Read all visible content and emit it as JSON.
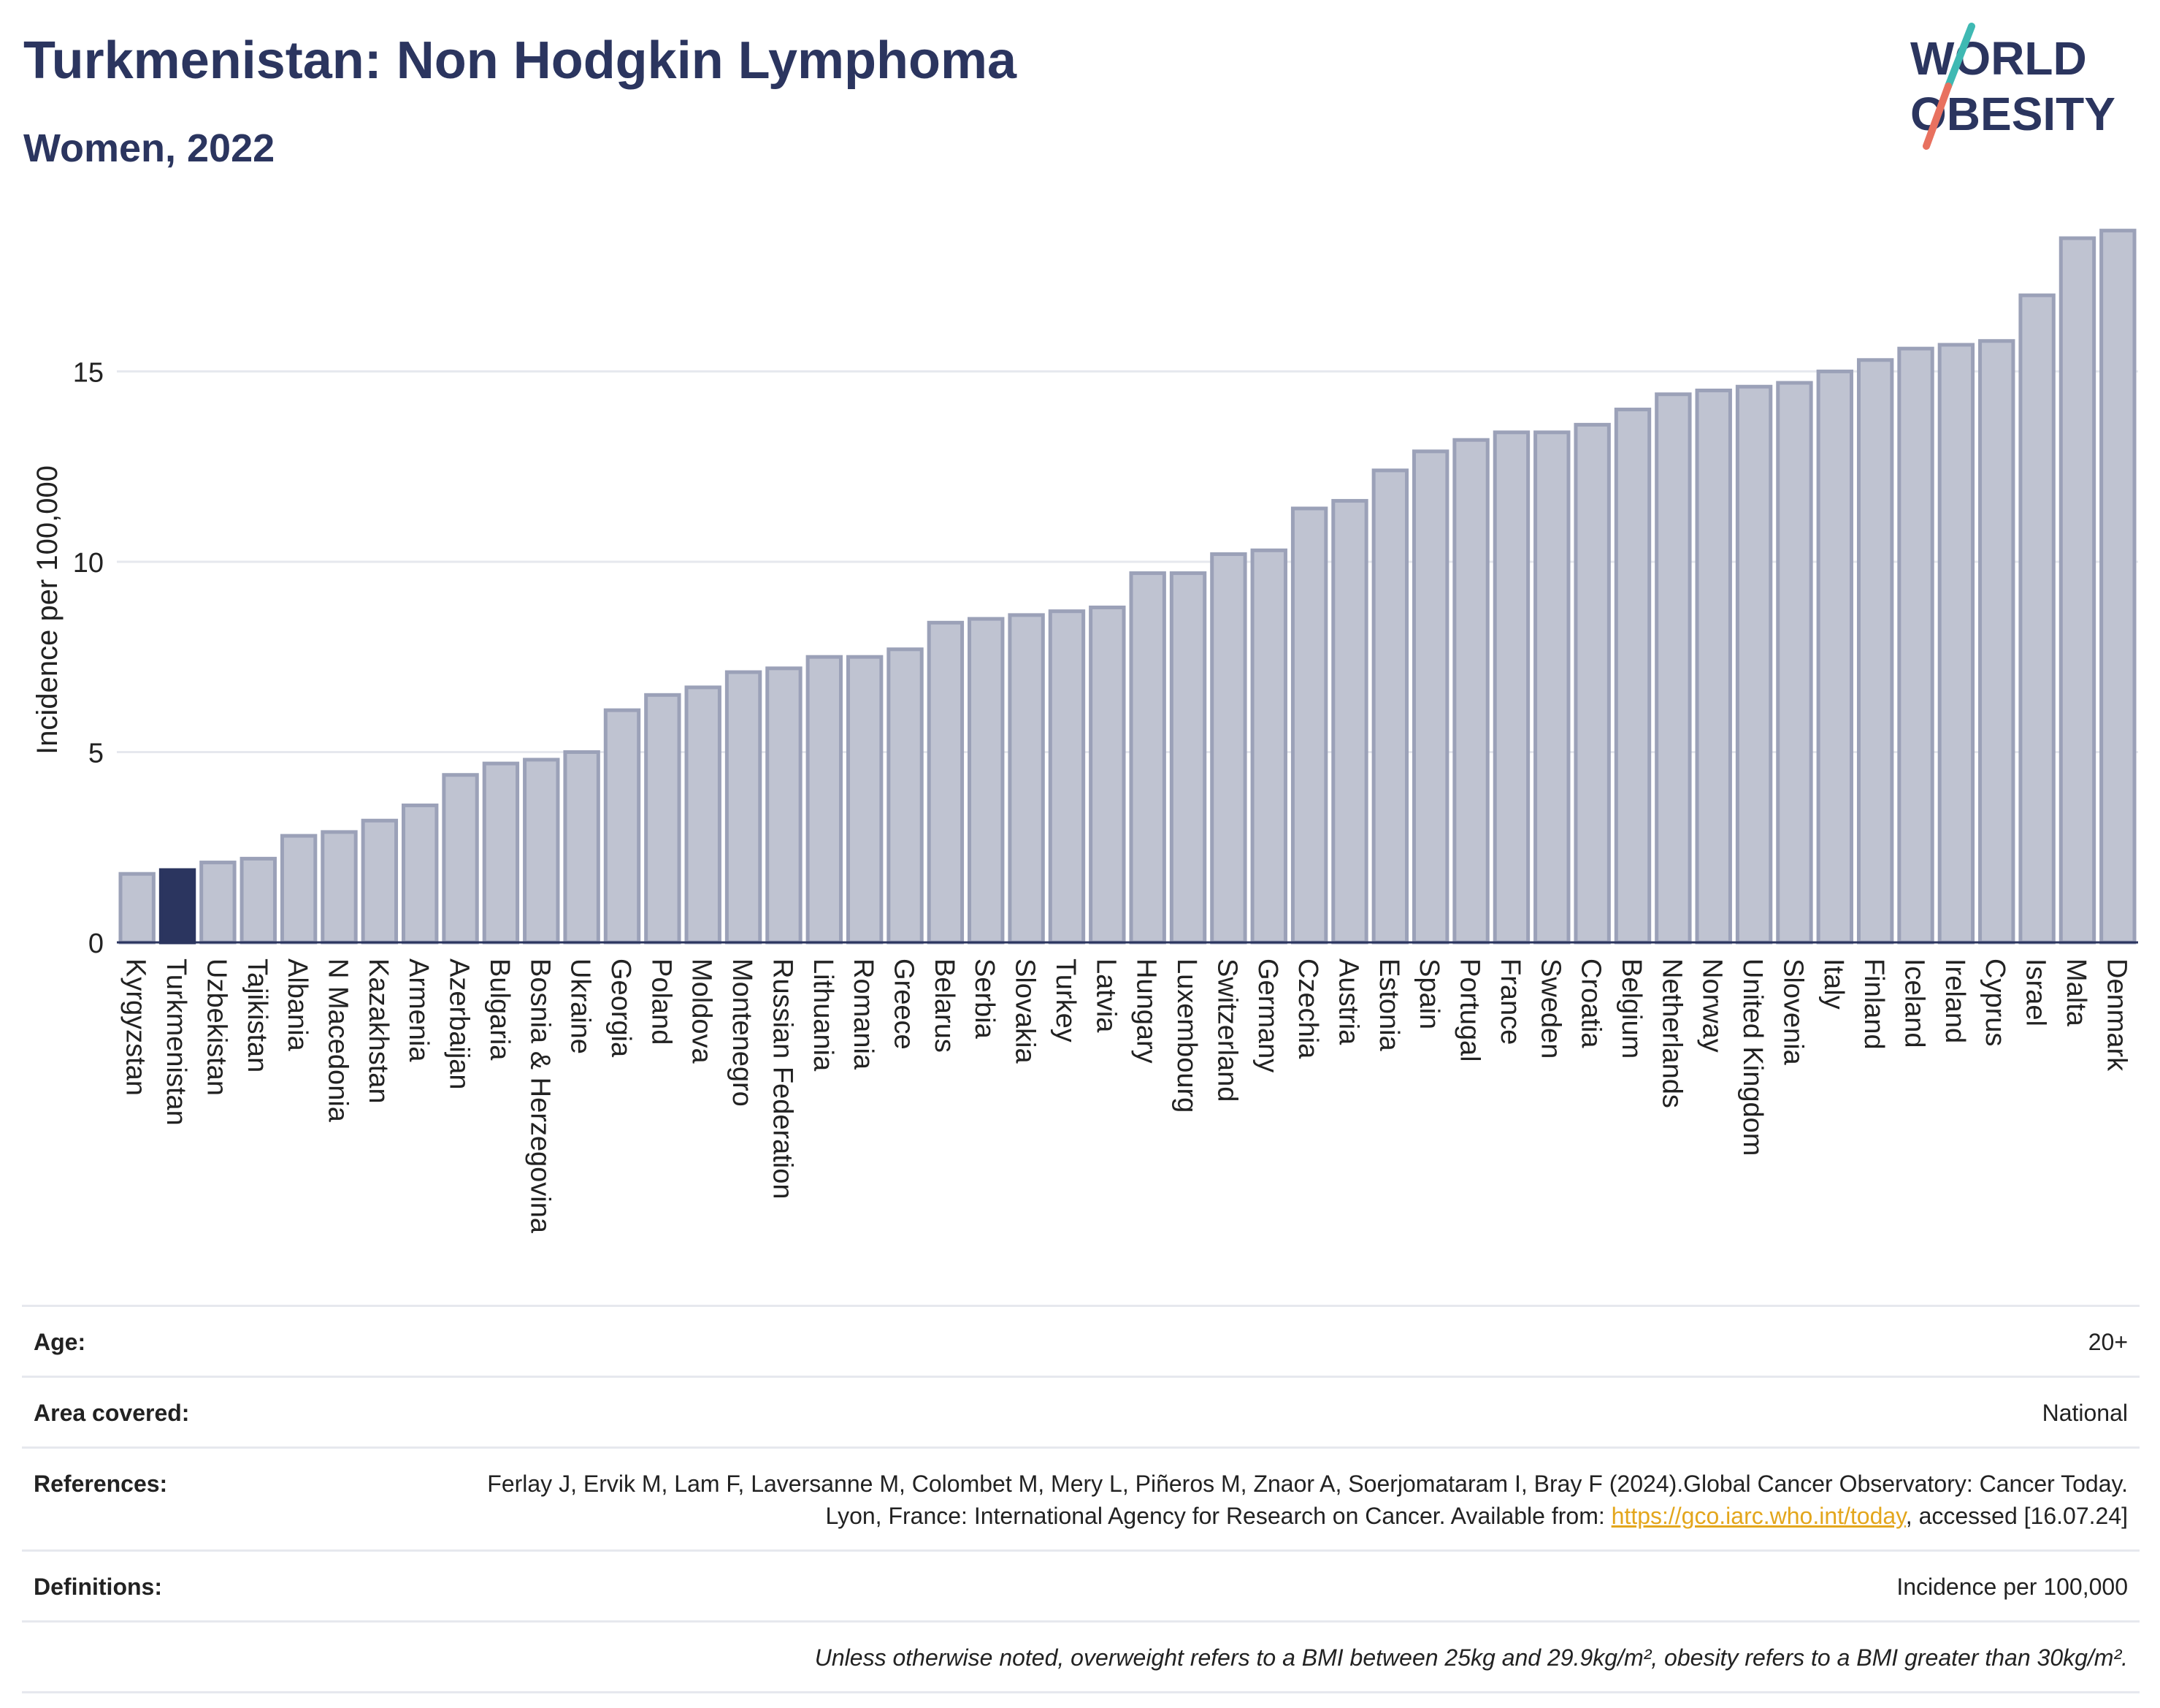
{
  "header": {
    "title": "Turkmenistan: Non Hodgkin Lymphoma",
    "subtitle": "Women, 2022"
  },
  "logo": {
    "line1": "WORLD",
    "line2": "OBESITY",
    "slash_colors": [
      "#3fb9b3",
      "#e8715f"
    ],
    "text_color": "#2b355f"
  },
  "colors": {
    "highlight_bar": "#2b355f",
    "other_bar": "#bfc3d1",
    "bar_outline": "#9ba1b8",
    "grid": "#e6e8ee",
    "axis": "#2b355f"
  },
  "chart_data": {
    "type": "bar",
    "ylabel": "Incidence per 100,000",
    "ylim": [
      0,
      19
    ],
    "yticks": [
      0,
      5,
      10,
      15
    ],
    "grid": true,
    "highlight": "Turkmenistan",
    "categories": [
      "Kyrgyzstan",
      "Turkmenistan",
      "Uzbekistan",
      "Tajikistan",
      "Albania",
      "N Macedonia",
      "Kazakhstan",
      "Armenia",
      "Azerbaijan",
      "Bulgaria",
      "Bosnia & Herzegovina",
      "Ukraine",
      "Georgia",
      "Poland",
      "Moldova",
      "Montenegro",
      "Russian Federation",
      "Lithuania",
      "Romania",
      "Greece",
      "Belarus",
      "Serbia",
      "Slovakia",
      "Turkey",
      "Latvia",
      "Hungary",
      "Luxembourg",
      "Switzerland",
      "Germany",
      "Czechia",
      "Austria",
      "Estonia",
      "Spain",
      "Portugal",
      "France",
      "Sweden",
      "Croatia",
      "Belgium",
      "Netherlands",
      "Norway",
      "United Kingdom",
      "Slovenia",
      "Italy",
      "Finland",
      "Iceland",
      "Ireland",
      "Cyprus",
      "Israel",
      "Malta",
      "Denmark"
    ],
    "values": [
      1.8,
      1.9,
      2.1,
      2.2,
      2.8,
      2.9,
      3.2,
      3.6,
      4.4,
      4.7,
      4.8,
      5.0,
      6.1,
      6.5,
      6.7,
      7.1,
      7.2,
      7.5,
      7.5,
      7.7,
      8.4,
      8.5,
      8.6,
      8.7,
      8.8,
      9.7,
      9.7,
      10.2,
      10.3,
      11.4,
      11.6,
      12.4,
      12.9,
      13.2,
      13.4,
      13.4,
      13.6,
      14.0,
      14.4,
      14.5,
      14.6,
      14.7,
      15.0,
      15.3,
      15.6,
      15.7,
      15.8,
      17.0,
      18.5,
      18.7
    ]
  },
  "info": {
    "age_label": "Age:",
    "age_value": "20+",
    "area_label": "Area covered:",
    "area_value": "National",
    "references_label": "References:",
    "references_text": "Ferlay J, Ervik M, Lam F, Laversanne M, Colombet M, Mery L, Piñeros M, Znaor A, Soerjomataram I, Bray F (2024).Global Cancer Observatory: Cancer Today. Lyon, France: International Agency for Research on Cancer. Available from:",
    "references_link": "https://gco.iarc.who.int/today",
    "references_suffix": ", accessed [16.07.24]",
    "definitions_label": "Definitions:",
    "definitions_value": "Incidence per 100,000",
    "note": "Unless otherwise noted, overweight refers to a BMI between 25kg and 29.9kg/m², obesity refers to a BMI greater than 30kg/m²."
  }
}
